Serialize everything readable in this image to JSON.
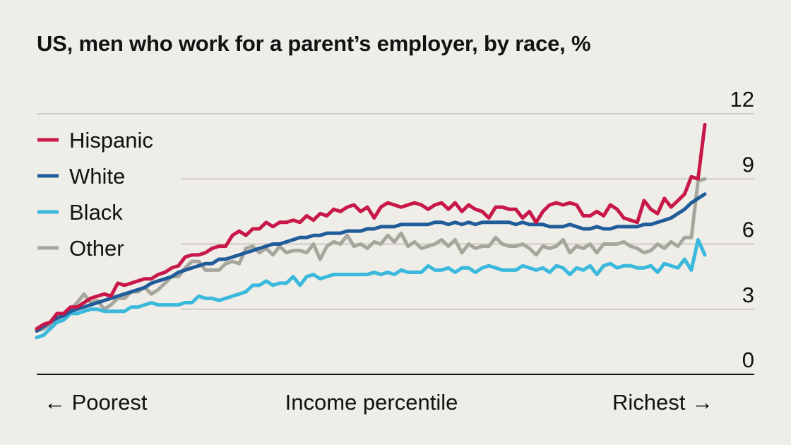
{
  "title": "US, men who work for a parent’s employer, by race, %",
  "x_labels": {
    "left": "← Poorest",
    "center": "Income percentile",
    "right": "Richest →"
  },
  "chart_data": {
    "type": "line",
    "title": "US, men who work for a parent’s employer, by race, %",
    "xlabel": "Income percentile",
    "ylabel": "",
    "x": [
      1,
      2,
      3,
      4,
      5,
      6,
      7,
      8,
      9,
      10,
      11,
      12,
      13,
      14,
      15,
      16,
      17,
      18,
      19,
      20,
      21,
      22,
      23,
      24,
      25,
      26,
      27,
      28,
      29,
      30,
      31,
      32,
      33,
      34,
      35,
      36,
      37,
      38,
      39,
      40,
      41,
      42,
      43,
      44,
      45,
      46,
      47,
      48,
      49,
      50,
      51,
      52,
      53,
      54,
      55,
      56,
      57,
      58,
      59,
      60,
      61,
      62,
      63,
      64,
      65,
      66,
      67,
      68,
      69,
      70,
      71,
      72,
      73,
      74,
      75,
      76,
      77,
      78,
      79,
      80,
      81,
      82,
      83,
      84,
      85,
      86,
      87,
      88,
      89,
      90,
      91,
      92,
      93,
      94,
      95,
      96,
      97,
      98,
      99,
      100
    ],
    "xlim": [
      1,
      100
    ],
    "ylim": [
      0,
      12
    ],
    "yticks": [
      0,
      3,
      6,
      9,
      12
    ],
    "grid": true,
    "legend_position": "top-left",
    "series": [
      {
        "name": "Hispanic",
        "color": "#c8184a",
        "values": [
          2.1,
          2.3,
          2.4,
          2.8,
          2.8,
          3.1,
          3.1,
          3.3,
          3.5,
          3.6,
          3.7,
          3.6,
          4.2,
          4.1,
          4.2,
          4.3,
          4.4,
          4.4,
          4.6,
          4.7,
          4.9,
          5.0,
          5.4,
          5.5,
          5.5,
          5.6,
          5.8,
          5.9,
          5.9,
          6.4,
          6.6,
          6.4,
          6.7,
          6.7,
          7.0,
          6.8,
          7.0,
          7.0,
          7.1,
          7.0,
          7.3,
          7.1,
          7.4,
          7.3,
          7.6,
          7.5,
          7.7,
          7.8,
          7.5,
          7.7,
          7.2,
          7.7,
          7.9,
          7.8,
          7.7,
          7.8,
          7.9,
          7.8,
          7.6,
          7.8,
          7.9,
          7.6,
          7.9,
          7.5,
          7.8,
          7.6,
          7.5,
          7.2,
          7.7,
          7.7,
          7.6,
          7.6,
          7.2,
          7.5,
          7.0,
          7.5,
          7.8,
          7.9,
          7.8,
          7.9,
          7.8,
          7.3,
          7.3,
          7.5,
          7.3,
          7.8,
          7.6,
          7.2,
          7.1,
          7.0,
          8.0,
          7.6,
          7.4,
          8.1,
          7.7,
          8.0,
          8.3,
          9.1,
          9.0,
          11.5
        ]
      },
      {
        "name": "White",
        "color": "#1f5c99",
        "values": [
          2.0,
          2.2,
          2.4,
          2.6,
          2.7,
          2.9,
          3.0,
          3.1,
          3.2,
          3.3,
          3.4,
          3.5,
          3.6,
          3.7,
          3.8,
          3.9,
          4.0,
          4.2,
          4.3,
          4.4,
          4.5,
          4.7,
          4.8,
          4.9,
          5.0,
          5.1,
          5.1,
          5.3,
          5.3,
          5.4,
          5.5,
          5.6,
          5.7,
          5.8,
          5.9,
          6.0,
          6.0,
          6.1,
          6.2,
          6.3,
          6.3,
          6.4,
          6.4,
          6.5,
          6.5,
          6.5,
          6.6,
          6.6,
          6.6,
          6.7,
          6.7,
          6.8,
          6.8,
          6.8,
          6.9,
          6.9,
          6.9,
          6.9,
          6.9,
          7.0,
          7.0,
          6.9,
          7.0,
          6.9,
          7.0,
          6.9,
          7.0,
          7.0,
          7.0,
          7.0,
          7.0,
          6.9,
          7.0,
          6.9,
          6.9,
          6.9,
          6.8,
          6.8,
          6.8,
          6.9,
          6.8,
          6.7,
          6.7,
          6.8,
          6.7,
          6.7,
          6.8,
          6.8,
          6.8,
          6.8,
          6.9,
          6.9,
          7.0,
          7.1,
          7.2,
          7.4,
          7.6,
          7.9,
          8.1,
          8.3
        ]
      },
      {
        "name": "Black",
        "color": "#3ab9dc",
        "values": [
          1.7,
          1.8,
          2.1,
          2.4,
          2.5,
          2.8,
          2.8,
          2.9,
          3.0,
          3.0,
          2.9,
          2.9,
          2.9,
          2.9,
          3.1,
          3.1,
          3.2,
          3.3,
          3.2,
          3.2,
          3.2,
          3.2,
          3.3,
          3.3,
          3.6,
          3.5,
          3.5,
          3.4,
          3.5,
          3.6,
          3.7,
          3.8,
          4.1,
          4.1,
          4.3,
          4.1,
          4.2,
          4.2,
          4.5,
          4.1,
          4.5,
          4.6,
          4.4,
          4.5,
          4.6,
          4.6,
          4.6,
          4.6,
          4.6,
          4.6,
          4.7,
          4.6,
          4.7,
          4.6,
          4.8,
          4.7,
          4.7,
          4.7,
          5.0,
          4.8,
          4.8,
          4.9,
          4.7,
          4.9,
          4.9,
          4.7,
          4.9,
          5.0,
          4.9,
          4.8,
          4.8,
          4.8,
          5.0,
          4.9,
          4.8,
          4.9,
          4.7,
          5.0,
          4.9,
          4.6,
          4.9,
          4.8,
          5.0,
          4.6,
          5.0,
          5.1,
          4.9,
          5.0,
          5.0,
          4.9,
          4.9,
          5.0,
          4.7,
          5.1,
          5.0,
          4.9,
          5.3,
          4.8,
          6.2,
          5.5
        ]
      },
      {
        "name": "Other",
        "color": "#a7a69d",
        "values": [
          2.0,
          2.1,
          2.3,
          2.5,
          2.8,
          3.0,
          3.3,
          3.7,
          3.3,
          3.4,
          3.0,
          3.2,
          3.5,
          3.5,
          3.8,
          3.8,
          4.0,
          3.7,
          3.9,
          4.2,
          4.5,
          4.5,
          4.9,
          5.2,
          5.2,
          4.8,
          4.8,
          4.8,
          5.1,
          5.2,
          5.1,
          5.8,
          5.9,
          5.6,
          5.8,
          5.5,
          5.9,
          5.6,
          5.7,
          5.7,
          5.6,
          6.0,
          5.3,
          5.9,
          6.1,
          6.0,
          6.4,
          5.9,
          6.0,
          5.8,
          6.1,
          6.0,
          6.4,
          6.1,
          6.5,
          5.9,
          6.1,
          5.8,
          5.9,
          6.0,
          6.2,
          5.9,
          6.2,
          5.6,
          6.0,
          5.8,
          5.9,
          5.9,
          6.3,
          6.0,
          5.9,
          5.9,
          6.0,
          5.8,
          5.5,
          5.9,
          5.8,
          5.9,
          6.2,
          5.6,
          5.9,
          5.8,
          6.0,
          5.6,
          6.0,
          6.0,
          6.0,
          6.1,
          5.9,
          5.8,
          5.6,
          5.7,
          6.0,
          5.8,
          6.1,
          5.9,
          6.3,
          6.3,
          8.9,
          9.0
        ]
      }
    ]
  }
}
